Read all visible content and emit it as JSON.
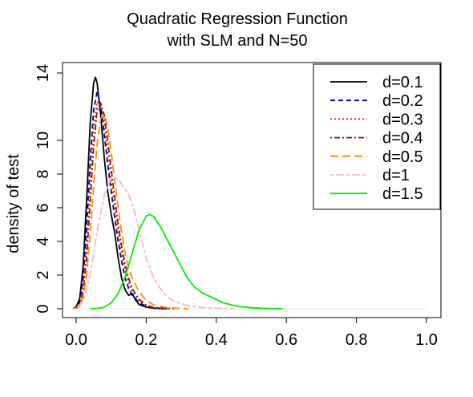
{
  "chart_data": {
    "type": "line",
    "title_line1": "Quadratic Regression Function",
    "title_line2": "with SLM and N=50",
    "xlabel": "",
    "ylabel": "density of test",
    "xlim": [
      0,
      1.0
    ],
    "ylim": [
      0,
      14
    ],
    "x_ticks": [
      "0.0",
      "0.2",
      "0.4",
      "0.6",
      "0.8",
      "1.0"
    ],
    "x_tick_values": [
      0,
      0.2,
      0.4,
      0.6,
      0.8,
      1.0
    ],
    "y_ticks": [
      "0",
      "2",
      "4",
      "6",
      "8",
      "10",
      "14"
    ],
    "y_tick_values": [
      0,
      2,
      4,
      6,
      8,
      10,
      14
    ],
    "legend_position": "top-right",
    "series": [
      {
        "name": "d=0.1",
        "color": "#000000",
        "dash": "solid",
        "x": [
          -0.01,
          0.0,
          0.01,
          0.02,
          0.03,
          0.04,
          0.05,
          0.055,
          0.06,
          0.07,
          0.08,
          0.09,
          0.1,
          0.11,
          0.12,
          0.13,
          0.14,
          0.15,
          0.16,
          0.17,
          0.18,
          0.2,
          0.22,
          0.25
        ],
        "y": [
          0,
          0.1,
          0.6,
          2.5,
          6.5,
          11.0,
          13.4,
          13.75,
          13.4,
          11.5,
          9.0,
          7.0,
          5.6,
          4.5,
          3.0,
          1.8,
          1.1,
          0.8,
          0.9,
          0.5,
          0.25,
          0.1,
          0.04,
          0
        ]
      },
      {
        "name": "d=0.2",
        "color": "#00008B",
        "dash": "dashed",
        "x": [
          -0.01,
          0.0,
          0.01,
          0.02,
          0.03,
          0.04,
          0.05,
          0.06,
          0.07,
          0.08,
          0.09,
          0.1,
          0.11,
          0.12,
          0.13,
          0.14,
          0.15,
          0.16,
          0.18,
          0.2,
          0.22,
          0.26
        ],
        "y": [
          0,
          0.05,
          0.4,
          1.8,
          4.8,
          8.8,
          11.8,
          12.9,
          12.1,
          10.4,
          8.6,
          7.0,
          5.4,
          4.0,
          2.8,
          1.8,
          1.2,
          0.8,
          0.35,
          0.15,
          0.05,
          0
        ]
      },
      {
        "name": "d=0.3",
        "color": "#CD2626",
        "dash": "dotted",
        "x": [
          -0.01,
          0.0,
          0.01,
          0.02,
          0.03,
          0.04,
          0.05,
          0.06,
          0.07,
          0.08,
          0.09,
          0.1,
          0.11,
          0.12,
          0.13,
          0.14,
          0.15,
          0.16,
          0.18,
          0.2,
          0.22,
          0.27
        ],
        "y": [
          0,
          0.04,
          0.3,
          1.3,
          3.8,
          7.5,
          10.7,
          12.3,
          12.1,
          11.0,
          9.3,
          7.6,
          6.0,
          4.6,
          3.3,
          2.3,
          1.5,
          1.0,
          0.45,
          0.18,
          0.06,
          0
        ]
      },
      {
        "name": "d=0.4",
        "color": "#8B1A1A",
        "dash": "dotdash",
        "x": [
          -0.01,
          0.0,
          0.01,
          0.02,
          0.03,
          0.04,
          0.05,
          0.06,
          0.07,
          0.08,
          0.09,
          0.1,
          0.11,
          0.12,
          0.13,
          0.14,
          0.15,
          0.16,
          0.18,
          0.2,
          0.22,
          0.28
        ],
        "y": [
          0,
          0.03,
          0.2,
          1.0,
          3.0,
          6.3,
          9.6,
          11.8,
          12.2,
          11.5,
          10.0,
          8.3,
          6.6,
          5.0,
          3.7,
          2.6,
          1.8,
          1.2,
          0.55,
          0.22,
          0.08,
          0
        ]
      },
      {
        "name": "d=0.5",
        "color": "#FF8C00",
        "dash": "longdash",
        "x": [
          -0.01,
          0.0,
          0.01,
          0.02,
          0.03,
          0.04,
          0.05,
          0.06,
          0.07,
          0.08,
          0.09,
          0.1,
          0.11,
          0.12,
          0.13,
          0.14,
          0.15,
          0.16,
          0.17,
          0.18,
          0.2,
          0.22,
          0.25,
          0.28,
          0.32
        ],
        "y": [
          0,
          0.02,
          0.15,
          0.7,
          2.0,
          4.4,
          7.3,
          9.8,
          11.3,
          11.5,
          10.8,
          9.3,
          7.6,
          6.0,
          4.5,
          3.3,
          2.4,
          1.8,
          1.4,
          1.0,
          0.5,
          0.25,
          0.1,
          0.04,
          0
        ]
      },
      {
        "name": "d=1",
        "color": "#FFB6C1",
        "dash": "twodash",
        "x": [
          -0.01,
          0.0,
          0.02,
          0.04,
          0.06,
          0.08,
          0.1,
          0.12,
          0.13,
          0.14,
          0.15,
          0.16,
          0.17,
          0.18,
          0.19,
          0.2,
          0.22,
          0.24,
          0.26,
          0.28,
          0.3,
          0.33,
          0.36,
          0.4,
          0.45
        ],
        "y": [
          0,
          0.02,
          0.4,
          2.0,
          4.6,
          6.7,
          7.8,
          7.7,
          7.4,
          7.1,
          6.8,
          6.2,
          5.5,
          4.6,
          3.8,
          3.0,
          1.9,
          1.2,
          0.7,
          0.45,
          0.3,
          0.15,
          0.08,
          0.03,
          0
        ]
      },
      {
        "name": "d=1.5",
        "color": "#00EE00",
        "dash": "solid",
        "x": [
          0.04,
          0.06,
          0.08,
          0.1,
          0.12,
          0.14,
          0.16,
          0.18,
          0.2,
          0.21,
          0.22,
          0.24,
          0.26,
          0.28,
          0.3,
          0.32,
          0.34,
          0.36,
          0.38,
          0.4,
          0.42,
          0.44,
          0.46,
          0.5,
          0.55,
          0.59
        ],
        "y": [
          0,
          0.02,
          0.1,
          0.35,
          0.9,
          1.9,
          3.3,
          4.7,
          5.5,
          5.6,
          5.5,
          4.9,
          4.1,
          3.3,
          2.5,
          1.75,
          1.25,
          0.95,
          0.75,
          0.55,
          0.35,
          0.25,
          0.15,
          0.06,
          0.02,
          0
        ]
      }
    ]
  }
}
